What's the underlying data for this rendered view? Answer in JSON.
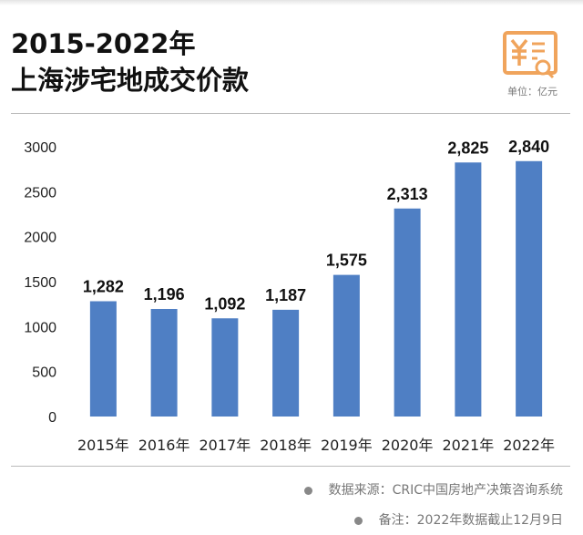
{
  "header": {
    "title_line1": "2015-2022年",
    "title_line2": "上海涉宅地成交价款",
    "unit": "单位：亿元",
    "icon": "yuan-document-search-icon",
    "icon_color": "#f0a45c"
  },
  "chart_data": {
    "type": "bar",
    "title": "2015-2022年 上海涉宅地成交价款",
    "categories": [
      "2015年",
      "2016年",
      "2017年",
      "2018年",
      "2019年",
      "2020年",
      "2021年",
      "2022年"
    ],
    "values": [
      1282,
      1196,
      1092,
      1187,
      1575,
      2313,
      2825,
      2840
    ],
    "data_labels": [
      "1,282",
      "1,196",
      "1,092",
      "1,187",
      "1,575",
      "2,313",
      "2,825",
      "2,840"
    ],
    "yticks": [
      0,
      500,
      1000,
      1500,
      2000,
      2500,
      3000
    ],
    "ylim": [
      0,
      3000
    ],
    "ylabel": "",
    "xlabel": "",
    "grid": false,
    "bar_color": "#4f7fc4"
  },
  "footer": {
    "source": "数据来源：CRIC中国房地产决策咨询系统",
    "note": "备注：2022年数据截止12月9日"
  }
}
